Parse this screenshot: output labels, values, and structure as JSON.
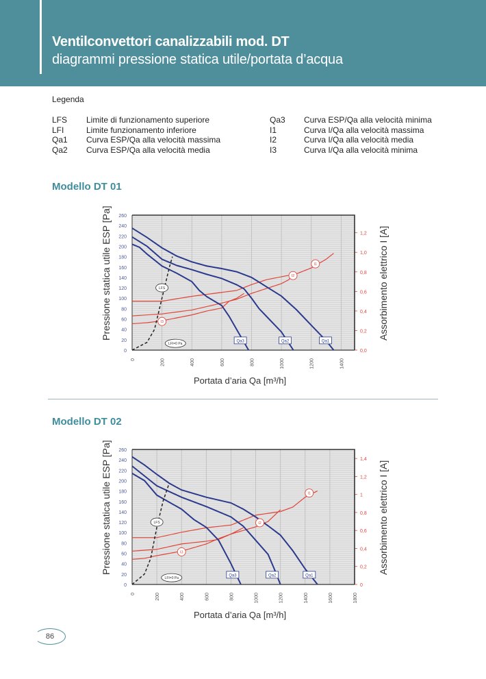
{
  "header": {
    "title": "Ventilconvettori canalizzabili mod. DT",
    "subtitle": "diagrammi pressione statica utile/portata d’acqua"
  },
  "legend": {
    "title": "Legenda",
    "left": [
      {
        "code": "LFS",
        "text": "Limite di funzionamento superiore"
      },
      {
        "code": "LFI",
        "text": "Limite funzionamento inferiore"
      },
      {
        "code": "Qa1",
        "text": "Curva ESP/Qa alla velocità massima"
      },
      {
        "code": "Qa2",
        "text": "Curva ESP/Qa alla velocità media"
      }
    ],
    "right": [
      {
        "code": "Qa3",
        "text": "Curva ESP/Qa alla velocità minima"
      },
      {
        "code": "I1",
        "text": "Curva I/Qa alla velocità massima"
      },
      {
        "code": "I2",
        "text": "Curva I/Qa alla velocità media"
      },
      {
        "code": "I3",
        "text": "Curva I/Qa alla velocità minima"
      }
    ]
  },
  "page_number": "86",
  "colors": {
    "band": "#4f8f9c",
    "esp": "#2b3a8c",
    "current": "#e0453a"
  },
  "chart_data": [
    {
      "type": "line",
      "title": "Modello DT 01",
      "xlabel": "Portata d’aria Qa [m³/h]",
      "ylabel": "Pressione statica utile ESP [Pa]",
      "y2label": "Assorbimento elettrico I [A]",
      "xlim": [
        0,
        1490
      ],
      "ylim": [
        0,
        260
      ],
      "y2lim": [
        0,
        1.38
      ],
      "xticks": [
        0,
        200,
        400,
        600,
        800,
        1000,
        1200,
        1400
      ],
      "yticks": [
        0,
        20,
        40,
        60,
        80,
        100,
        120,
        140,
        160,
        180,
        200,
        220,
        240,
        260
      ],
      "y2ticks": [
        "0,0",
        "0,2",
        "0,4",
        "0,6",
        "0,8",
        "1,0",
        "1,2"
      ],
      "y2tickvals": [
        0,
        0.2,
        0.4,
        0.6,
        0.8,
        1.0,
        1.2
      ],
      "lfs_label": "LFS",
      "lfi_label": "LFI=0 Pa",
      "esp_series": [
        {
          "name": "Qa1",
          "points": [
            [
              0,
              235
            ],
            [
              100,
              217
            ],
            [
              200,
              197
            ],
            [
              300,
              181
            ],
            [
              400,
              170
            ],
            [
              500,
              162
            ],
            [
              600,
              157
            ],
            [
              700,
              151
            ],
            [
              800,
              140
            ],
            [
              900,
              122
            ],
            [
              1000,
              104
            ],
            [
              1100,
              78
            ],
            [
              1200,
              48
            ],
            [
              1300,
              18
            ],
            [
              1350,
              0
            ]
          ]
        },
        {
          "name": "Qa2",
          "points": [
            [
              0,
              218
            ],
            [
              100,
              200
            ],
            [
              200,
              175
            ],
            [
              300,
              163
            ],
            [
              400,
              155
            ],
            [
              500,
              146
            ],
            [
              600,
              138
            ],
            [
              700,
              126
            ],
            [
              750,
              118
            ],
            [
              800,
              100
            ],
            [
              850,
              80
            ],
            [
              900,
              65
            ],
            [
              1000,
              35
            ],
            [
              1080,
              0
            ]
          ]
        },
        {
          "name": "Qa3",
          "points": [
            [
              0,
              204
            ],
            [
              50,
              198
            ],
            [
              100,
              185
            ],
            [
              200,
              162
            ],
            [
              300,
              148
            ],
            [
              400,
              132
            ],
            [
              450,
              115
            ],
            [
              500,
              103
            ],
            [
              600,
              86
            ],
            [
              650,
              65
            ],
            [
              700,
              40
            ],
            [
              750,
              15
            ],
            [
              780,
              0
            ]
          ]
        }
      ],
      "current_series": [
        {
          "name": "I1",
          "points": [
            [
              0,
              0.5
            ],
            [
              200,
              0.5
            ],
            [
              400,
              0.55
            ],
            [
              600,
              0.59
            ],
            [
              700,
              0.61
            ],
            [
              800,
              0.67
            ],
            [
              900,
              0.72
            ],
            [
              1000,
              0.75
            ],
            [
              1100,
              0.78
            ],
            [
              1200,
              0.84
            ],
            [
              1300,
              0.93
            ],
            [
              1350,
              0.99
            ]
          ]
        },
        {
          "name": "I2",
          "points": [
            [
              0,
              0.35
            ],
            [
              200,
              0.37
            ],
            [
              400,
              0.41
            ],
            [
              600,
              0.48
            ],
            [
              700,
              0.52
            ],
            [
              800,
              0.58
            ],
            [
              900,
              0.63
            ],
            [
              1000,
              0.68
            ],
            [
              1050,
              0.72
            ],
            [
              1080,
              0.79
            ]
          ]
        },
        {
          "name": "I3",
          "points": [
            [
              0,
              0.27
            ],
            [
              100,
              0.28
            ],
            [
              200,
              0.3
            ],
            [
              300,
              0.33
            ],
            [
              400,
              0.36
            ],
            [
              500,
              0.4
            ],
            [
              600,
              0.43
            ],
            [
              650,
              0.5
            ],
            [
              700,
              0.53
            ],
            [
              750,
              0.58
            ]
          ]
        }
      ],
      "lfs_points": [
        [
          0,
          0
        ],
        [
          100,
          15
        ],
        [
          150,
          40
        ],
        [
          200,
          100
        ],
        [
          250,
          160
        ],
        [
          270,
          180
        ]
      ]
    },
    {
      "type": "line",
      "title": "Modello DT 02",
      "xlabel": "Portata d’aria Qa [m³/h]",
      "ylabel": "Pressione statica utile ESP [Pa]",
      "y2label": "Assorbimento elettrico I [A]",
      "xlim": [
        0,
        1800
      ],
      "ylim": [
        0,
        260
      ],
      "y2lim": [
        0,
        1.5
      ],
      "xticks": [
        0,
        200,
        400,
        600,
        800,
        1000,
        1200,
        1400,
        1600,
        1800
      ],
      "yticks": [
        0,
        20,
        40,
        60,
        80,
        100,
        120,
        140,
        160,
        180,
        200,
        220,
        240,
        260
      ],
      "y2ticks": [
        "0",
        "0,2",
        "0,4",
        "0,6",
        "0,8",
        "1",
        "1,2",
        "1,4"
      ],
      "y2tickvals": [
        0,
        0.2,
        0.4,
        0.6,
        0.8,
        1.0,
        1.2,
        1.4
      ],
      "lfs_label": "LFS",
      "lfi_label": "LFI=0 Pa",
      "esp_series": [
        {
          "name": "Qa1",
          "points": [
            [
              0,
              246
            ],
            [
              100,
              230
            ],
            [
              200,
              212
            ],
            [
              300,
              195
            ],
            [
              400,
              182
            ],
            [
              600,
              168
            ],
            [
              800,
              157
            ],
            [
              900,
              145
            ],
            [
              1000,
              130
            ],
            [
              1100,
              113
            ],
            [
              1200,
              95
            ],
            [
              1300,
              65
            ],
            [
              1400,
              30
            ],
            [
              1500,
              0
            ]
          ]
        },
        {
          "name": "Qa2",
          "points": [
            [
              0,
              228
            ],
            [
              200,
              190
            ],
            [
              400,
              168
            ],
            [
              600,
              150
            ],
            [
              800,
              130
            ],
            [
              900,
              112
            ],
            [
              1000,
              85
            ],
            [
              1100,
              58
            ],
            [
              1150,
              30
            ],
            [
              1200,
              0
            ]
          ]
        },
        {
          "name": "Qa3",
          "points": [
            [
              0,
              214
            ],
            [
              100,
              200
            ],
            [
              200,
              172
            ],
            [
              400,
              145
            ],
            [
              500,
              125
            ],
            [
              600,
              110
            ],
            [
              700,
              85
            ],
            [
              800,
              40
            ],
            [
              850,
              15
            ],
            [
              880,
              0
            ]
          ]
        }
      ],
      "current_series": [
        {
          "name": "I1",
          "points": [
            [
              0,
              0.52
            ],
            [
              200,
              0.52
            ],
            [
              400,
              0.58
            ],
            [
              600,
              0.63
            ],
            [
              800,
              0.66
            ],
            [
              1000,
              0.77
            ],
            [
              1200,
              0.81
            ],
            [
              1300,
              0.86
            ],
            [
              1400,
              0.97
            ],
            [
              1500,
              1.04
            ]
          ]
        },
        {
          "name": "I2",
          "points": [
            [
              0,
              0.37
            ],
            [
              200,
              0.39
            ],
            [
              400,
              0.45
            ],
            [
              600,
              0.48
            ],
            [
              700,
              0.5
            ],
            [
              800,
              0.56
            ],
            [
              1000,
              0.64
            ],
            [
              1100,
              0.7
            ],
            [
              1200,
              0.83
            ]
          ]
        },
        {
          "name": "I3",
          "points": [
            [
              0,
              0.28
            ],
            [
              100,
              0.29
            ],
            [
              200,
              0.32
            ],
            [
              400,
              0.37
            ],
            [
              600,
              0.45
            ],
            [
              700,
              0.51
            ],
            [
              800,
              0.56
            ],
            [
              900,
              0.63
            ]
          ]
        }
      ],
      "lfs_points": [
        [
          0,
          0
        ],
        [
          100,
          20
        ],
        [
          150,
          50
        ],
        [
          200,
          110
        ],
        [
          250,
          160
        ],
        [
          300,
          195
        ]
      ]
    }
  ]
}
